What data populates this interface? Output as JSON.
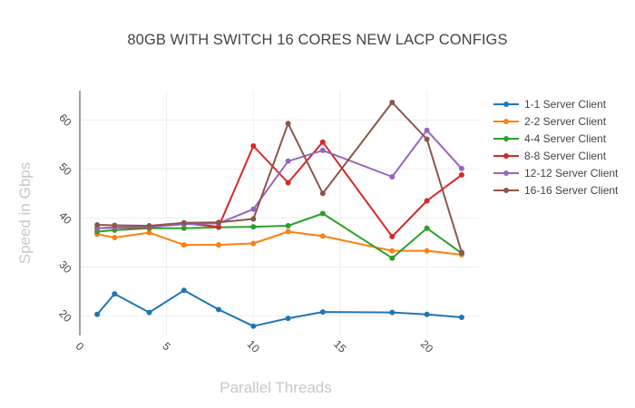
{
  "chart_data": {
    "type": "line",
    "title": "80GB WITH SWITCH 16 CORES NEW LACP CONFIGS",
    "xlabel": "Parallel Threads",
    "ylabel": "Speed in Gbps",
    "xlim": [
      0,
      23
    ],
    "ylim": [
      16,
      66
    ],
    "xticks": [
      "0",
      "5",
      "10",
      "15",
      "20"
    ],
    "yticks": [
      "20",
      "30",
      "40",
      "50",
      "60"
    ],
    "grid": true,
    "legend_position": "right",
    "x": [
      1,
      2,
      4,
      6,
      8,
      10,
      12,
      14,
      18,
      20,
      22
    ],
    "series": [
      {
        "name": "1-1 Server Client",
        "color": "#1f77b4",
        "values": [
          20.3,
          24.5,
          20.7,
          25.2,
          21.3,
          17.9,
          19.5,
          20.8,
          20.7,
          20.3,
          19.7
        ]
      },
      {
        "name": "2-2 Server Client",
        "color": "#ff7f0e",
        "values": [
          36.7,
          36.0,
          37.0,
          34.5,
          34.5,
          34.8,
          37.2,
          36.3,
          33.3,
          33.3,
          32.5
        ]
      },
      {
        "name": "4-4 Server Client",
        "color": "#2ca02c",
        "values": [
          37.2,
          37.5,
          37.9,
          37.9,
          38.1,
          38.2,
          38.4,
          40.9,
          31.8,
          37.9,
          32.8
        ]
      },
      {
        "name": "8-8 Server Client",
        "color": "#d62728",
        "values": [
          37.9,
          38.0,
          38.1,
          38.9,
          38.2,
          54.7,
          47.2,
          55.5,
          36.2,
          43.5,
          48.8
        ]
      },
      {
        "name": "12-12 Server Client",
        "color": "#9467bd",
        "values": [
          37.9,
          38.1,
          38.2,
          38.7,
          38.9,
          41.8,
          51.6,
          53.8,
          48.4,
          57.9,
          50.1
        ]
      },
      {
        "name": "16-16 Server Client",
        "color": "#8c564b",
        "values": [
          38.6,
          38.5,
          38.4,
          39.0,
          39.1,
          39.8,
          59.3,
          45.0,
          63.6,
          56.1,
          33.0
        ]
      }
    ]
  }
}
